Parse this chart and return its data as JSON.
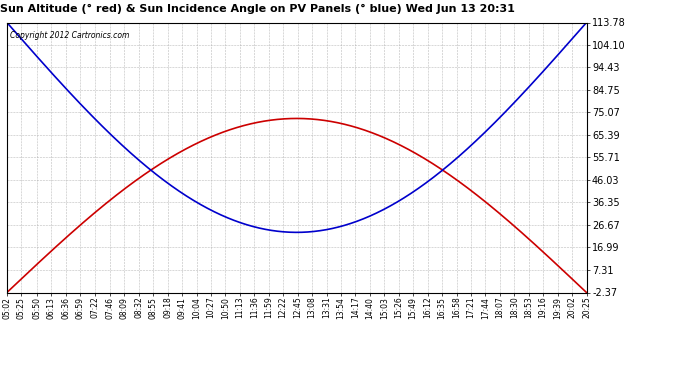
{
  "title": "Sun Altitude (° red) & Sun Incidence Angle on PV Panels (° blue) Wed Jun 13 20:31",
  "copyright": "Copyright 2012 Cartronics.com",
  "yticks": [
    113.78,
    104.1,
    94.43,
    84.75,
    75.07,
    65.39,
    55.71,
    46.03,
    36.35,
    26.67,
    16.99,
    7.31,
    -2.37
  ],
  "ymin": -2.37,
  "ymax": 113.78,
  "red_color": "#cc0000",
  "blue_color": "#0000cc",
  "bg_color": "#ffffff",
  "grid_color": "#aaaaaa",
  "red_peak": 72.5,
  "blue_trough": 23.5,
  "time_labels": [
    "05:02",
    "05:25",
    "05:50",
    "06:13",
    "06:36",
    "06:59",
    "07:22",
    "07:46",
    "08:09",
    "08:32",
    "08:55",
    "09:18",
    "09:41",
    "10:04",
    "10:27",
    "10:50",
    "11:13",
    "11:36",
    "11:59",
    "12:22",
    "12:45",
    "13:08",
    "13:31",
    "13:54",
    "14:17",
    "14:40",
    "15:03",
    "15:26",
    "15:49",
    "16:12",
    "16:35",
    "16:58",
    "17:21",
    "17:44",
    "18:07",
    "18:30",
    "18:53",
    "19:16",
    "19:39",
    "20:02",
    "20:25"
  ]
}
